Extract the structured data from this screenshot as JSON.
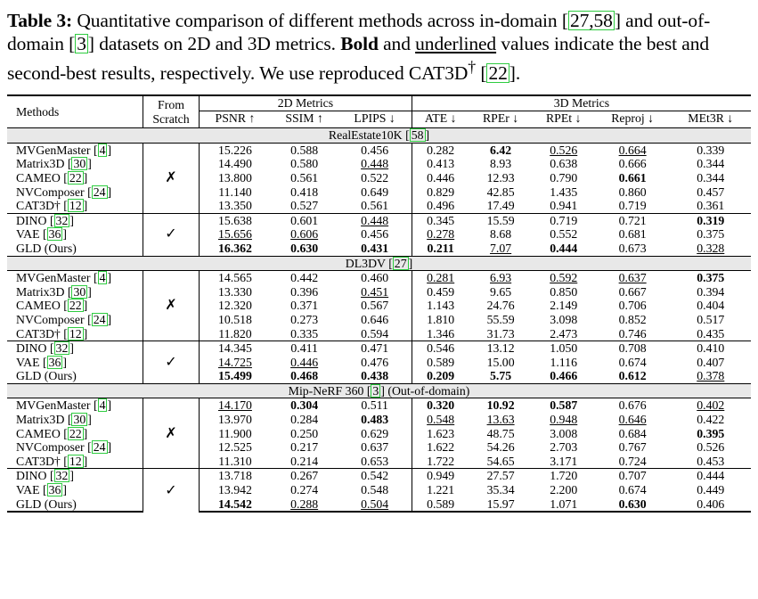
{
  "caption": {
    "label": "Table 3:",
    "text_a": "Quantitative comparison of different methods across in-domain",
    "cite_a": "27,58",
    "text_b": "and out-of-domain",
    "cite_b": "3",
    "text_c": "datasets on 2D and 3D metrics.",
    "bold_word": "Bold",
    "text_d": "and",
    "underlined_word": "underlined",
    "text_e": "values indicate the best and second-best results, respectively. We use reproduced CAT3D",
    "dagger": "†",
    "cite_c": "22",
    "text_f": "."
  },
  "header": {
    "methods": "Methods",
    "from": "From",
    "scratch": "Scratch",
    "metrics2d": "2D Metrics",
    "metrics3d": "3D Metrics",
    "cols": [
      "PSNR ↑",
      "SSIM ↑",
      "LPIPS ↓",
      "ATE ↓",
      "RPEr ↓",
      "RPEt ↓",
      "Reproj ↓",
      "MEt3R ↓"
    ]
  },
  "marks": {
    "cross": "✗",
    "check": "✓"
  },
  "sections": [
    {
      "title": "RealEstate10K",
      "cite": "58",
      "suffix": "",
      "groups": [
        {
          "mark": "cross",
          "rows": [
            {
              "m": "MVGenMaster",
              "c": "4",
              "v": [
                "15.226",
                "0.588",
                "0.456",
                "0.282",
                "6.42",
                "0.526",
                "0.664",
                "0.339"
              ],
              "b": [
                4
              ],
              "u": [
                5,
                6
              ]
            },
            {
              "m": "Matrix3D",
              "c": "30",
              "v": [
                "14.490",
                "0.580",
                "0.448",
                "0.413",
                "8.93",
                "0.638",
                "0.666",
                "0.344"
              ],
              "b": [],
              "u": [
                2
              ]
            },
            {
              "m": "CAMEO",
              "c": "22",
              "v": [
                "13.800",
                "0.561",
                "0.522",
                "0.446",
                "12.93",
                "0.790",
                "0.661",
                "0.344"
              ],
              "b": [
                6
              ],
              "u": []
            },
            {
              "m": "NVComposer",
              "c": "24",
              "v": [
                "11.140",
                "0.418",
                "0.649",
                "0.829",
                "42.85",
                "1.435",
                "0.860",
                "0.457"
              ],
              "b": [],
              "u": []
            },
            {
              "m": "CAT3D†",
              "c": "12",
              "v": [
                "13.350",
                "0.527",
                "0.561",
                "0.496",
                "17.49",
                "0.941",
                "0.719",
                "0.361"
              ],
              "b": [],
              "u": []
            }
          ]
        },
        {
          "mark": "check",
          "rows": [
            {
              "m": "DINO",
              "c": "32",
              "v": [
                "15.638",
                "0.601",
                "0.448",
                "0.345",
                "15.59",
                "0.719",
                "0.721",
                "0.319"
              ],
              "b": [
                7
              ],
              "u": [
                2
              ]
            },
            {
              "m": "VAE",
              "c": "36",
              "v": [
                "15.656",
                "0.606",
                "0.456",
                "0.278",
                "8.68",
                "0.552",
                "0.681",
                "0.375"
              ],
              "b": [],
              "u": [
                0,
                1,
                3
              ]
            },
            {
              "m": "GLD (Ours)",
              "c": "",
              "v": [
                "16.362",
                "0.630",
                "0.431",
                "0.211",
                "7.07",
                "0.444",
                "0.673",
                "0.328"
              ],
              "b": [
                0,
                1,
                2,
                3,
                5
              ],
              "u": [
                4,
                7
              ],
              "bm": true
            }
          ]
        }
      ]
    },
    {
      "title": "DL3DV",
      "cite": "27",
      "suffix": "",
      "groups": [
        {
          "mark": "cross",
          "rows": [
            {
              "m": "MVGenMaster",
              "c": "4",
              "v": [
                "14.565",
                "0.442",
                "0.460",
                "0.281",
                "6.93",
                "0.592",
                "0.637",
                "0.375"
              ],
              "b": [
                7
              ],
              "u": [
                3,
                4,
                5,
                6
              ]
            },
            {
              "m": "Matrix3D",
              "c": "30",
              "v": [
                "13.330",
                "0.396",
                "0.451",
                "0.459",
                "9.65",
                "0.850",
                "0.667",
                "0.394"
              ],
              "b": [],
              "u": [
                2
              ]
            },
            {
              "m": "CAMEO",
              "c": "22",
              "v": [
                "12.320",
                "0.371",
                "0.567",
                "1.143",
                "24.76",
                "2.149",
                "0.706",
                "0.404"
              ],
              "b": [],
              "u": []
            },
            {
              "m": "NVComposer",
              "c": "24",
              "v": [
                "10.518",
                "0.273",
                "0.646",
                "1.810",
                "55.59",
                "3.098",
                "0.852",
                "0.517"
              ],
              "b": [],
              "u": []
            },
            {
              "m": "CAT3D†",
              "c": "12",
              "v": [
                "11.820",
                "0.335",
                "0.594",
                "1.346",
                "31.73",
                "2.473",
                "0.746",
                "0.435"
              ],
              "b": [],
              "u": []
            }
          ]
        },
        {
          "mark": "check",
          "rows": [
            {
              "m": "DINO",
              "c": "32",
              "v": [
                "14.345",
                "0.411",
                "0.471",
                "0.546",
                "13.12",
                "1.050",
                "0.708",
                "0.410"
              ],
              "b": [],
              "u": []
            },
            {
              "m": "VAE",
              "c": "36",
              "v": [
                "14.725",
                "0.446",
                "0.476",
                "0.589",
                "15.00",
                "1.116",
                "0.674",
                "0.407"
              ],
              "b": [],
              "u": [
                0,
                1
              ]
            },
            {
              "m": "GLD (Ours)",
              "c": "",
              "v": [
                "15.499",
                "0.468",
                "0.438",
                "0.209",
                "5.75",
                "0.466",
                "0.612",
                "0.378"
              ],
              "b": [
                0,
                1,
                2,
                3,
                4,
                5,
                6
              ],
              "u": [
                7
              ],
              "bm": true
            }
          ]
        }
      ]
    },
    {
      "title": "Mip-NeRF 360",
      "cite": "3",
      "suffix": "(Out-of-domain)",
      "groups": [
        {
          "mark": "cross",
          "rows": [
            {
              "m": "MVGenMaster",
              "c": "4",
              "v": [
                "14.170",
                "0.304",
                "0.511",
                "0.320",
                "10.92",
                "0.587",
                "0.676",
                "0.402"
              ],
              "b": [
                1,
                3,
                4,
                5
              ],
              "u": [
                0,
                7
              ]
            },
            {
              "m": "Matrix3D",
              "c": "30",
              "v": [
                "13.970",
                "0.284",
                "0.483",
                "0.548",
                "13.63",
                "0.948",
                "0.646",
                "0.422"
              ],
              "b": [
                2
              ],
              "u": [
                3,
                4,
                5,
                6
              ]
            },
            {
              "m": "CAMEO",
              "c": "22",
              "v": [
                "11.900",
                "0.250",
                "0.629",
                "1.623",
                "48.75",
                "3.008",
                "0.684",
                "0.395"
              ],
              "b": [
                7
              ],
              "u": []
            },
            {
              "m": "NVComposer",
              "c": "24",
              "v": [
                "12.525",
                "0.217",
                "0.637",
                "1.622",
                "54.26",
                "2.703",
                "0.767",
                "0.526"
              ],
              "b": [],
              "u": []
            },
            {
              "m": "CAT3D†",
              "c": "12",
              "v": [
                "11.310",
                "0.214",
                "0.653",
                "1.722",
                "54.65",
                "3.171",
                "0.724",
                "0.453"
              ],
              "b": [],
              "u": []
            }
          ]
        },
        {
          "mark": "check",
          "rows": [
            {
              "m": "DINO",
              "c": "32",
              "v": [
                "13.718",
                "0.267",
                "0.542",
                "0.949",
                "27.57",
                "1.720",
                "0.707",
                "0.444"
              ],
              "b": [],
              "u": []
            },
            {
              "m": "VAE",
              "c": "36",
              "v": [
                "13.942",
                "0.274",
                "0.548",
                "1.221",
                "35.34",
                "2.200",
                "0.674",
                "0.449"
              ],
              "b": [],
              "u": []
            },
            {
              "m": "GLD (Ours)",
              "c": "",
              "v": [
                "14.542",
                "0.288",
                "0.504",
                "0.589",
                "15.97",
                "1.071",
                "0.630",
                "0.406"
              ],
              "b": [
                0,
                6
              ],
              "u": [
                1,
                2
              ],
              "bm": true
            }
          ]
        }
      ]
    }
  ]
}
